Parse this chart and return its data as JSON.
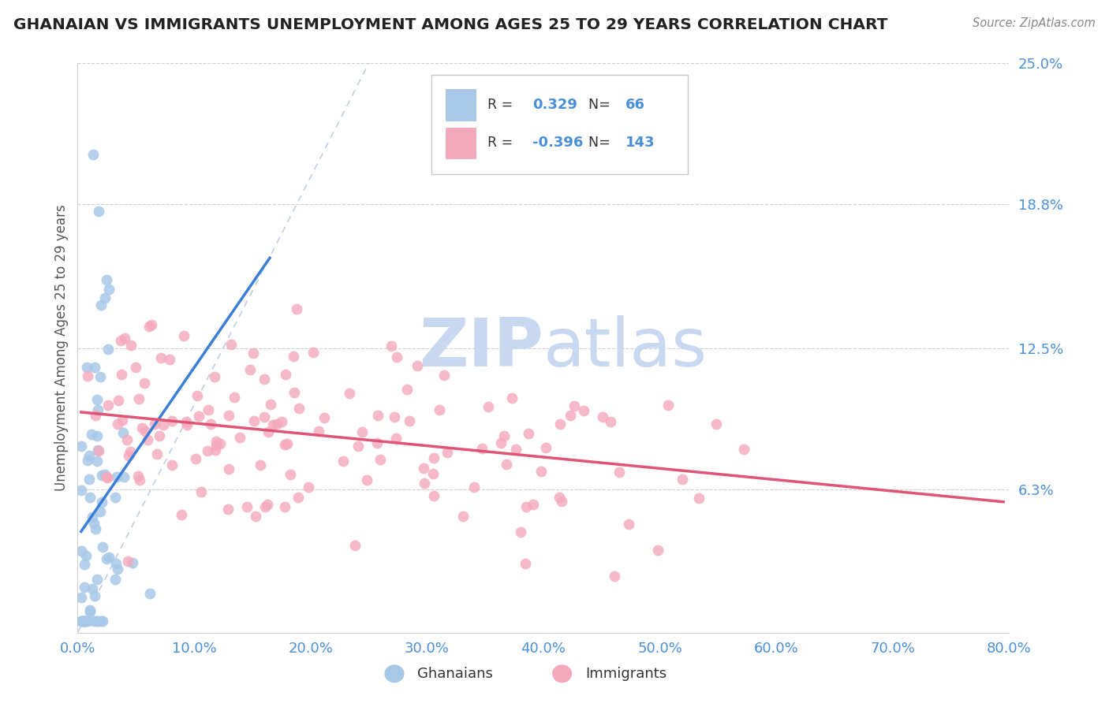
{
  "title": "GHANAIAN VS IMMIGRANTS UNEMPLOYMENT AMONG AGES 25 TO 29 YEARS CORRELATION CHART",
  "source": "Source: ZipAtlas.com",
  "ylabel": "Unemployment Among Ages 25 to 29 years",
  "xlim": [
    0,
    0.8
  ],
  "ylim": [
    0,
    0.25
  ],
  "ytick_vals": [
    0.063,
    0.125,
    0.188,
    0.25
  ],
  "ytick_labels": [
    "6.3%",
    "12.5%",
    "18.8%",
    "25.0%"
  ],
  "xtick_vals": [
    0.0,
    0.1,
    0.2,
    0.3,
    0.4,
    0.5,
    0.6,
    0.7,
    0.8
  ],
  "xtick_labels": [
    "0.0%",
    "10.0%",
    "20.0%",
    "30.0%",
    "40.0%",
    "50.0%",
    "60.0%",
    "70.0%",
    "80.0%"
  ],
  "legend_r1": "0.329",
  "legend_n1": "66",
  "legend_r2": "-0.396",
  "legend_n2": "143",
  "color_ghanaian": "#a8c8e8",
  "color_immigrant": "#f4a8bc",
  "color_ghanaian_line": "#3a7fd5",
  "color_immigrant_line": "#e05575",
  "color_tick": "#4a90d9",
  "watermark_color": "#c8d8f0",
  "background_color": "#ffffff",
  "gh_seed": 42,
  "im_seed": 123
}
